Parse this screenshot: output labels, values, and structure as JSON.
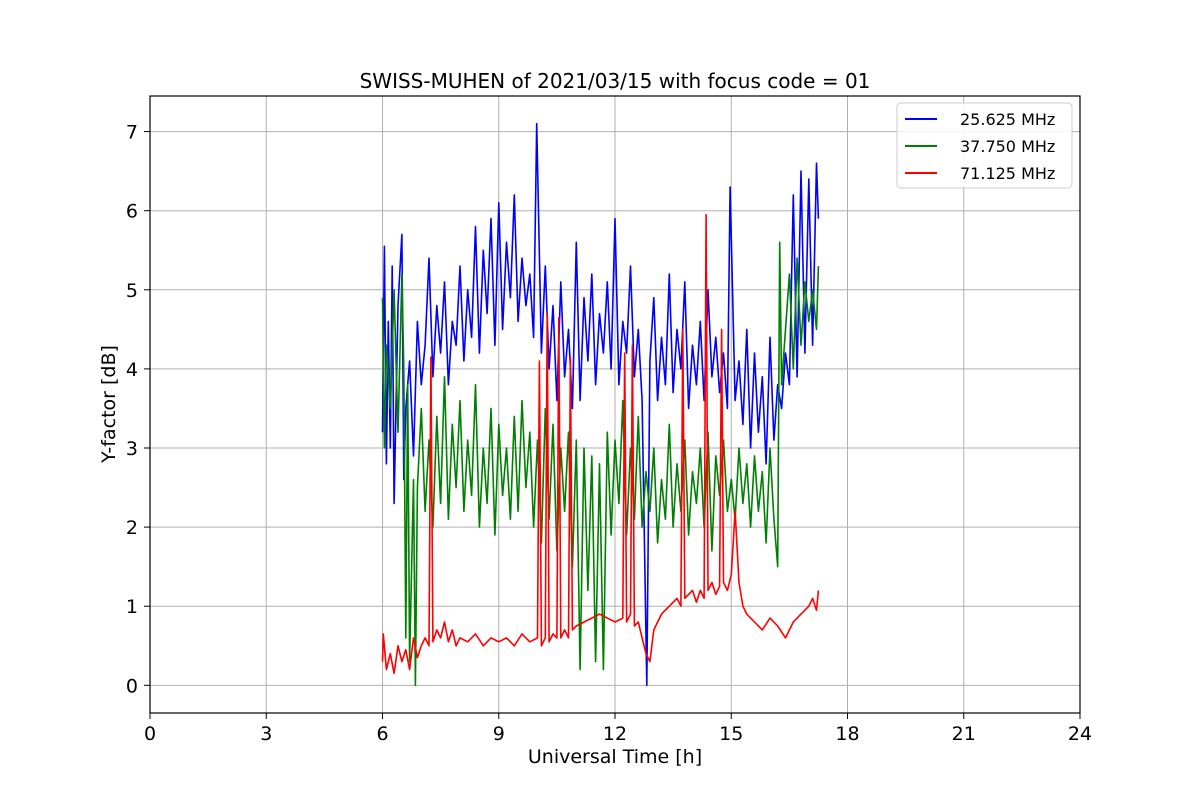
{
  "chart_data": {
    "type": "line",
    "title": "SWISS-MUHEN of 2021/03/15 with focus code = 01",
    "xlabel": "Universal Time [h]",
    "ylabel": "Y-factor [dB]",
    "xlim": [
      0,
      24
    ],
    "ylim": [
      -0.35,
      7.45
    ],
    "xticks": [
      0,
      3,
      6,
      9,
      12,
      15,
      18,
      21,
      24
    ],
    "yticks": [
      0,
      1,
      2,
      3,
      4,
      5,
      6,
      7
    ],
    "grid": true,
    "legend_position": "top-right",
    "series": [
      {
        "name": "25.625 MHz",
        "color": "#0000ff",
        "x": [
          6.0,
          6.05,
          6.1,
          6.15,
          6.2,
          6.25,
          6.3,
          6.4,
          6.5,
          6.55,
          6.6,
          6.7,
          6.8,
          6.9,
          7.0,
          7.1,
          7.2,
          7.3,
          7.4,
          7.5,
          7.6,
          7.7,
          7.8,
          7.9,
          8.0,
          8.1,
          8.2,
          8.3,
          8.4,
          8.5,
          8.6,
          8.7,
          8.8,
          8.9,
          9.0,
          9.1,
          9.2,
          9.3,
          9.4,
          9.5,
          9.6,
          9.7,
          9.8,
          9.9,
          9.98,
          10.1,
          10.2,
          10.3,
          10.4,
          10.5,
          10.6,
          10.7,
          10.8,
          10.9,
          11.0,
          11.1,
          11.2,
          11.3,
          11.4,
          11.5,
          11.6,
          11.7,
          11.8,
          11.9,
          12.0,
          12.1,
          12.2,
          12.3,
          12.4,
          12.5,
          12.6,
          12.7,
          12.82,
          12.9,
          13.0,
          13.1,
          13.2,
          13.3,
          13.4,
          13.5,
          13.6,
          13.7,
          13.8,
          13.9,
          14.0,
          14.1,
          14.2,
          14.3,
          14.4,
          14.5,
          14.6,
          14.7,
          14.8,
          14.9,
          14.97,
          15.1,
          15.2,
          15.3,
          15.4,
          15.5,
          15.6,
          15.7,
          15.8,
          15.9,
          16.0,
          16.1,
          16.2,
          16.3,
          16.4,
          16.5,
          16.6,
          16.7,
          16.8,
          16.9,
          17.0,
          17.1,
          17.2,
          17.25
        ],
        "y": [
          3.2,
          5.55,
          2.8,
          4.6,
          3.0,
          5.3,
          2.3,
          4.8,
          5.7,
          2.6,
          3.5,
          4.1,
          2.9,
          4.6,
          3.8,
          4.3,
          5.4,
          3.9,
          4.8,
          4.2,
          5.1,
          3.8,
          4.6,
          4.3,
          5.3,
          4.1,
          5.0,
          4.4,
          5.8,
          4.2,
          5.5,
          4.7,
          5.9,
          4.3,
          6.1,
          4.5,
          5.6,
          4.9,
          6.2,
          4.6,
          5.4,
          4.8,
          5.2,
          4.4,
          7.1,
          4.2,
          5.3,
          4.0,
          4.8,
          3.6,
          5.1,
          3.9,
          4.5,
          3.5,
          5.6,
          3.6,
          4.9,
          4.1,
          5.2,
          3.8,
          4.7,
          4.2,
          5.1,
          4.0,
          5.9,
          3.8,
          4.6,
          4.2,
          5.3,
          3.9,
          4.5,
          3.6,
          0.0,
          4.1,
          4.9,
          3.6,
          4.4,
          3.8,
          5.2,
          3.7,
          4.5,
          4.0,
          5.1,
          3.5,
          4.3,
          3.8,
          4.6,
          3.6,
          5.0,
          3.9,
          4.4,
          3.7,
          4.2,
          3.5,
          6.3,
          3.6,
          4.1,
          3.3,
          4.5,
          3.0,
          4.2,
          3.2,
          3.9,
          2.8,
          4.4,
          3.1,
          3.8,
          3.5,
          4.2,
          3.8,
          6.2,
          3.9,
          6.5,
          4.2,
          6.4,
          4.3,
          6.6,
          5.9
        ]
      },
      {
        "name": "37.750 MHz",
        "color": "#008000",
        "x": [
          6.0,
          6.05,
          6.1,
          6.2,
          6.3,
          6.4,
          6.5,
          6.55,
          6.6,
          6.65,
          6.7,
          6.8,
          6.85,
          6.9,
          7.0,
          7.1,
          7.2,
          7.3,
          7.4,
          7.5,
          7.6,
          7.7,
          7.8,
          7.9,
          8.0,
          8.1,
          8.2,
          8.3,
          8.4,
          8.5,
          8.6,
          8.7,
          8.8,
          8.9,
          9.0,
          9.1,
          9.2,
          9.3,
          9.4,
          9.5,
          9.6,
          9.7,
          9.8,
          9.9,
          10.0,
          10.1,
          10.2,
          10.3,
          10.4,
          10.5,
          10.6,
          10.7,
          10.8,
          10.9,
          11.0,
          11.1,
          11.2,
          11.3,
          11.4,
          11.5,
          11.6,
          11.7,
          11.8,
          11.9,
          12.0,
          12.1,
          12.2,
          12.3,
          12.4,
          12.5,
          12.6,
          12.7,
          12.8,
          12.9,
          13.0,
          13.1,
          13.2,
          13.3,
          13.4,
          13.5,
          13.6,
          13.7,
          13.8,
          13.9,
          14.0,
          14.1,
          14.2,
          14.3,
          14.4,
          14.5,
          14.6,
          14.7,
          14.8,
          14.9,
          15.0,
          15.1,
          15.2,
          15.3,
          15.4,
          15.5,
          15.6,
          15.7,
          15.8,
          15.9,
          16.0,
          16.1,
          16.2,
          16.25,
          16.3,
          16.4,
          16.5,
          16.6,
          16.7,
          16.8,
          16.9,
          17.0,
          17.1,
          17.2,
          17.25
        ],
        "y": [
          4.9,
          3.0,
          4.3,
          3.5,
          5.0,
          3.2,
          5.2,
          4.0,
          0.6,
          3.8,
          0.3,
          2.6,
          0.0,
          2.5,
          3.5,
          2.2,
          3.1,
          2.0,
          3.4,
          2.3,
          3.9,
          2.1,
          3.3,
          2.5,
          3.6,
          2.2,
          3.1,
          2.4,
          3.8,
          2.0,
          3.0,
          2.3,
          3.5,
          1.9,
          3.3,
          2.4,
          3.0,
          2.1,
          3.4,
          2.2,
          3.6,
          2.5,
          3.2,
          2.0,
          3.1,
          1.8,
          3.5,
          2.1,
          3.3,
          1.7,
          3.0,
          2.2,
          3.2,
          1.5,
          3.1,
          0.2,
          3.0,
          1.2,
          2.9,
          0.3,
          2.8,
          0.2,
          3.2,
          1.9,
          3.1,
          2.3,
          3.6,
          1.9,
          3.0,
          2.1,
          3.4,
          2.0,
          2.7,
          2.2,
          3.0,
          1.8,
          2.6,
          2.1,
          3.3,
          2.0,
          2.8,
          2.2,
          3.1,
          1.9,
          2.7,
          2.3,
          3.0,
          2.0,
          3.2,
          1.7,
          2.9,
          2.4,
          3.1,
          2.2,
          2.6,
          2.1,
          3.0,
          2.3,
          2.8,
          2.0,
          2.9,
          2.2,
          2.7,
          1.8,
          3.0,
          2.1,
          1.5,
          5.6,
          3.8,
          4.5,
          5.2,
          4.0,
          5.4,
          4.3,
          5.1,
          4.6,
          5.0,
          4.5,
          5.3
        ]
      },
      {
        "name": "71.125 MHz",
        "color": "#ff0000",
        "x": [
          6.0,
          6.02,
          6.1,
          6.2,
          6.3,
          6.4,
          6.5,
          6.6,
          6.7,
          6.8,
          6.9,
          7.0,
          7.1,
          7.2,
          7.25,
          7.3,
          7.4,
          7.5,
          7.6,
          7.7,
          7.8,
          7.9,
          8.0,
          8.2,
          8.4,
          8.6,
          8.8,
          9.0,
          9.2,
          9.4,
          9.6,
          9.8,
          10.0,
          10.05,
          10.1,
          10.2,
          10.25,
          10.3,
          10.4,
          10.5,
          10.55,
          10.6,
          10.7,
          10.8,
          10.85,
          10.9,
          11.0,
          11.2,
          11.4,
          11.6,
          11.8,
          12.0,
          12.2,
          12.25,
          12.3,
          12.4,
          12.45,
          12.5,
          12.6,
          12.7,
          12.8,
          12.9,
          13.0,
          13.2,
          13.4,
          13.6,
          13.7,
          13.75,
          13.8,
          14.0,
          14.1,
          14.2,
          14.3,
          14.35,
          14.4,
          14.5,
          14.6,
          14.7,
          14.75,
          14.8,
          14.9,
          15.0,
          15.1,
          15.2,
          15.3,
          15.4,
          15.6,
          15.8,
          16.0,
          16.2,
          16.4,
          16.6,
          16.8,
          17.0,
          17.1,
          17.2,
          17.25
        ],
        "y": [
          0.3,
          0.65,
          0.2,
          0.4,
          0.15,
          0.5,
          0.3,
          0.45,
          0.2,
          0.6,
          0.35,
          0.5,
          0.6,
          0.5,
          4.15,
          0.55,
          0.7,
          0.6,
          0.8,
          0.55,
          0.7,
          0.5,
          0.6,
          0.55,
          0.65,
          0.5,
          0.6,
          0.55,
          0.6,
          0.5,
          0.65,
          0.55,
          0.6,
          4.1,
          0.5,
          0.6,
          4.7,
          0.55,
          0.65,
          0.6,
          4.65,
          0.6,
          0.7,
          0.6,
          4.15,
          0.7,
          0.75,
          0.8,
          0.85,
          0.9,
          0.85,
          0.8,
          0.85,
          4.2,
          0.8,
          0.9,
          4.3,
          0.75,
          0.8,
          0.6,
          0.4,
          0.3,
          0.7,
          0.9,
          1.0,
          1.1,
          1.0,
          4.5,
          1.1,
          1.2,
          1.05,
          1.2,
          1.1,
          5.95,
          1.2,
          1.3,
          1.15,
          1.25,
          4.5,
          1.3,
          1.2,
          1.4,
          2.2,
          1.3,
          1.0,
          0.9,
          0.8,
          0.7,
          0.85,
          0.75,
          0.6,
          0.8,
          0.9,
          1.0,
          1.1,
          0.95,
          1.2
        ]
      }
    ]
  }
}
